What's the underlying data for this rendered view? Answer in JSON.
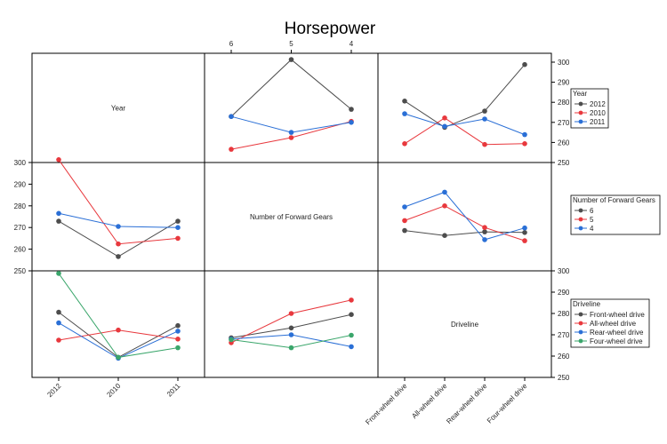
{
  "chart_data": {
    "type": "line",
    "title": "Horsepower",
    "variables": [
      {
        "name": "Year",
        "levels": [
          "2012",
          "2010",
          "2011"
        ]
      },
      {
        "name": "Number of Forward Gears",
        "levels": [
          "6",
          "5",
          "4"
        ]
      },
      {
        "name": "Driveline",
        "levels": [
          "Front-wheel drive",
          "All-wheel drive",
          "Rear-wheel drive",
          "Four-wheel drive"
        ]
      }
    ],
    "ylim": [
      250,
      300
    ],
    "yticks": [
      250,
      260,
      270,
      280,
      290,
      300
    ],
    "grid": false,
    "legends": [
      {
        "title": "Year",
        "entries": [
          "2012",
          "2010",
          "2011"
        ]
      },
      {
        "title": "Number of Forward Gears",
        "entries": [
          "6",
          "5",
          "4"
        ]
      },
      {
        "title": "Driveline",
        "entries": [
          "Front-wheel drive",
          "All-wheel drive",
          "Rear-wheel drive",
          "Four-wheel drive"
        ]
      }
    ],
    "panels": [
      {
        "x_var": "Number of Forward Gears",
        "trace_var": "Year",
        "series": [
          {
            "name": "2012",
            "values": [
              272.9,
              301.3,
              276.5
            ]
          },
          {
            "name": "2010",
            "values": [
              256.6,
              262.4,
              270.5
            ]
          },
          {
            "name": "2011",
            "values": [
              272.9,
              265.0,
              270.0
            ]
          }
        ]
      },
      {
        "x_var": "Driveline",
        "trace_var": "Year",
        "series": [
          {
            "name": "2012",
            "values": [
              280.6,
              267.5,
              275.6,
              298.8
            ]
          },
          {
            "name": "2010",
            "values": [
              259.4,
              272.2,
              259.0,
              259.4
            ]
          },
          {
            "name": "2011",
            "values": [
              274.3,
              268.0,
              271.7,
              263.9
            ]
          }
        ]
      },
      {
        "x_var": "Year",
        "trace_var": "Number of Forward Gears",
        "series": [
          {
            "name": "6",
            "values": [
              272.9,
              256.6,
              272.9
            ]
          },
          {
            "name": "5",
            "values": [
              301.3,
              262.4,
              265.0
            ]
          },
          {
            "name": "4",
            "values": [
              276.5,
              270.5,
              270.0
            ]
          }
        ]
      },
      {
        "x_var": "Driveline",
        "trace_var": "Number of Forward Gears",
        "series": [
          {
            "name": "6",
            "values": [
              268.6,
              266.3,
              268.0,
              267.7
            ]
          },
          {
            "name": "5",
            "values": [
              273.2,
              280.0,
              270.0,
              263.9
            ]
          },
          {
            "name": "4",
            "values": [
              279.5,
              286.3,
              264.4,
              269.8
            ]
          }
        ]
      },
      {
        "x_var": "Year",
        "trace_var": "Driveline",
        "series": [
          {
            "name": "Front-wheel drive",
            "values": [
              280.6,
              259.4,
              274.3
            ]
          },
          {
            "name": "All-wheel drive",
            "values": [
              267.5,
              272.2,
              268.0
            ]
          },
          {
            "name": "Rear-wheel drive",
            "values": [
              275.6,
              259.0,
              271.7
            ]
          },
          {
            "name": "Four-wheel drive",
            "values": [
              298.8,
              259.4,
              263.9
            ]
          }
        ]
      },
      {
        "x_var": "Number of Forward Gears",
        "trace_var": "Driveline",
        "series": [
          {
            "name": "Front-wheel drive",
            "values": [
              268.6,
              273.2,
              279.5
            ]
          },
          {
            "name": "All-wheel drive",
            "values": [
              266.3,
              280.0,
              286.3
            ]
          },
          {
            "name": "Rear-wheel drive",
            "values": [
              268.0,
              270.0,
              264.4
            ]
          },
          {
            "name": "Four-wheel drive",
            "values": [
              267.7,
              263.9,
              269.8
            ]
          }
        ]
      }
    ]
  },
  "colors": {
    "series": [
      "#4d4d4d",
      "#e8383d",
      "#2a6fd6",
      "#3aa66b"
    ],
    "frame": "#000000"
  }
}
